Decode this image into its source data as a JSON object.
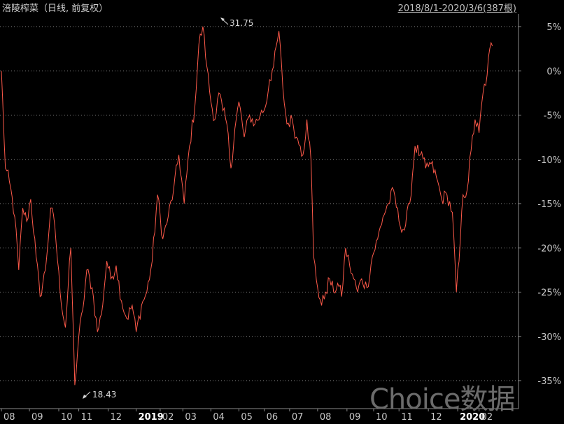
{
  "title": "涪陵榨菜（日线, 前复权）",
  "date_range": "2018/8/1-2020/3/6(387根)",
  "watermark": "Choice数据",
  "colors": {
    "line": "#ff5a4a",
    "grid": "#8a8a8a",
    "text": "#c8c8c8",
    "annotation": "#d8d8d8"
  },
  "chart_data": {
    "type": "line",
    "y_unit": "%",
    "ylim": [
      -37,
      5.5
    ],
    "y_ticks": [
      5,
      0,
      -5,
      -10,
      -15,
      -20,
      -25,
      -30,
      -35
    ],
    "y_tick_labels": [
      "5%",
      "0%",
      "-5%",
      "-10%",
      "-15%",
      "-20%",
      "-25%",
      "-30%",
      "-35%"
    ],
    "x_tick_labels": [
      "08",
      "09",
      "10",
      "11",
      "12",
      "2019",
      "02",
      "03",
      "04",
      "05",
      "06",
      "07",
      "08",
      "09",
      "10",
      "11",
      "12",
      "2020",
      "02"
    ],
    "x_tick_index": [
      0,
      21,
      43,
      58,
      80,
      101,
      119,
      136,
      157,
      178,
      197,
      216,
      237,
      259,
      279,
      298,
      320,
      342,
      358
    ],
    "n_points": 387,
    "max_label": "31.75",
    "min_label": "18.43",
    "series": [
      {
        "values_anchor": [
          [
            0,
            0.0
          ],
          [
            3,
            -11.0
          ],
          [
            6,
            -12.5
          ],
          [
            10,
            -16.5
          ],
          [
            13,
            -22.5
          ],
          [
            16,
            -15.5
          ],
          [
            19,
            -17.0
          ],
          [
            22,
            -14.5
          ],
          [
            26,
            -21.0
          ],
          [
            29,
            -25.5
          ],
          [
            33,
            -22.5
          ],
          [
            37,
            -15.5
          ],
          [
            40,
            -17.5
          ],
          [
            44,
            -25.0
          ],
          [
            48,
            -29.0
          ],
          [
            52,
            -20.0
          ],
          [
            55,
            -35.5
          ],
          [
            58,
            -30.0
          ],
          [
            61,
            -27.0
          ],
          [
            64,
            -22.5
          ],
          [
            68,
            -24.5
          ],
          [
            72,
            -29.5
          ],
          [
            75,
            -27.5
          ],
          [
            79,
            -21.5
          ],
          [
            82,
            -23.5
          ],
          [
            86,
            -22.0
          ],
          [
            90,
            -26.0
          ],
          [
            94,
            -28.0
          ],
          [
            98,
            -26.5
          ],
          [
            101,
            -29.5
          ],
          [
            105,
            -26.5
          ],
          [
            109,
            -25.0
          ],
          [
            113,
            -21.5
          ],
          [
            117,
            -14.0
          ],
          [
            121,
            -19.0
          ],
          [
            125,
            -16.5
          ],
          [
            129,
            -13.5
          ],
          [
            133,
            -9.5
          ],
          [
            137,
            -15.0
          ],
          [
            141,
            -8.5
          ],
          [
            145,
            -4.0
          ],
          [
            148,
            3.0
          ],
          [
            151,
            5.0
          ],
          [
            154,
            0.5
          ],
          [
            157,
            -3.5
          ],
          [
            160,
            -5.5
          ],
          [
            163,
            -2.5
          ],
          [
            166,
            -4.5
          ],
          [
            169,
            -6.0
          ],
          [
            172,
            -11.0
          ],
          [
            175,
            -6.5
          ],
          [
            178,
            -3.5
          ],
          [
            182,
            -7.5
          ],
          [
            186,
            -5.0
          ],
          [
            190,
            -6.0
          ],
          [
            194,
            -5.0
          ],
          [
            198,
            -4.0
          ],
          [
            201,
            -1.0
          ],
          [
            204,
            0.5
          ],
          [
            208,
            4.5
          ],
          [
            211,
            -2.0
          ],
          [
            214,
            -6.0
          ],
          [
            218,
            -5.5
          ],
          [
            221,
            -7.5
          ],
          [
            224,
            -8.5
          ],
          [
            226,
            -9.5
          ],
          [
            229,
            -5.5
          ],
          [
            232,
            -10.0
          ],
          [
            234,
            -21.0
          ],
          [
            237,
            -24.5
          ],
          [
            240,
            -26.5
          ],
          [
            243,
            -25.0
          ],
          [
            246,
            -23.5
          ],
          [
            249,
            -25.0
          ],
          [
            252,
            -24.0
          ],
          [
            255,
            -25.5
          ],
          [
            258,
            -20.0
          ],
          [
            261,
            -22.0
          ],
          [
            264,
            -23.5
          ],
          [
            267,
            -25.0
          ],
          [
            270,
            -23.5
          ],
          [
            274,
            -24.5
          ],
          [
            278,
            -21.0
          ],
          [
            282,
            -19.0
          ],
          [
            286,
            -16.5
          ],
          [
            290,
            -15.0
          ],
          [
            294,
            -13.5
          ],
          [
            298,
            -17.0
          ],
          [
            302,
            -18.0
          ],
          [
            306,
            -15.0
          ],
          [
            310,
            -8.5
          ],
          [
            314,
            -9.5
          ],
          [
            318,
            -11.0
          ],
          [
            322,
            -10.5
          ],
          [
            326,
            -12.0
          ],
          [
            330,
            -14.5
          ],
          [
            334,
            -14.0
          ],
          [
            338,
            -16.0
          ],
          [
            341,
            -25.0
          ],
          [
            343,
            -21.5
          ],
          [
            346,
            -14.0
          ],
          [
            349,
            -13.5
          ],
          [
            352,
            -9.0
          ],
          [
            355,
            -5.5
          ],
          [
            358,
            -7.0
          ],
          [
            361,
            -2.5
          ],
          [
            364,
            -0.5
          ],
          [
            366,
            2.5
          ],
          [
            368,
            2.8
          ]
        ]
      }
    ]
  }
}
